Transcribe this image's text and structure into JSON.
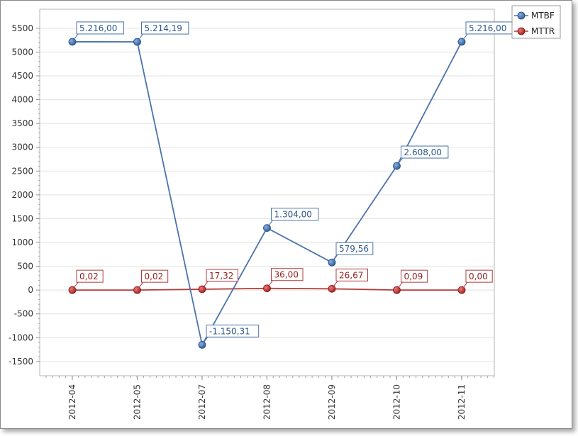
{
  "chart_data": {
    "type": "line",
    "categories": [
      "2012-04",
      "2012-05",
      "2012-07",
      "2012-08",
      "2012-09",
      "2012-10",
      "2012-11"
    ],
    "series": [
      {
        "name": "MTBF",
        "color": "#4a73aa",
        "values": [
          5216.0,
          5214.19,
          -1150.31,
          1304.0,
          579.56,
          2608.0,
          5216.0
        ],
        "labels": [
          "5.216,00",
          "5.214,19",
          "-1.150,31",
          "1.304,00",
          "579,56",
          "2.608,00",
          "5.216,00"
        ]
      },
      {
        "name": "MTTR",
        "color": "#b23b3b",
        "values": [
          0.02,
          0.02,
          17.32,
          36.0,
          26.67,
          0.09,
          0.0
        ],
        "labels": [
          "0,02",
          "0,02",
          "17,32",
          "36,00",
          "26,67",
          "0,09",
          "0,00"
        ]
      }
    ],
    "y_ticks": [
      {
        "value": 5500,
        "label": "5500"
      },
      {
        "value": 5000,
        "label": "5000"
      },
      {
        "value": 4500,
        "label": "4500"
      },
      {
        "value": 4000,
        "label": "4000"
      },
      {
        "value": 3500,
        "label": "3500"
      },
      {
        "value": 3000,
        "label": "3000"
      },
      {
        "value": 2500,
        "label": "2500"
      },
      {
        "value": 2000,
        "label": "2000"
      },
      {
        "value": 1500,
        "label": "1500"
      },
      {
        "value": 1000,
        "label": "1000"
      },
      {
        "value": 500,
        "label": "500"
      },
      {
        "value": 0,
        "label": "0"
      },
      {
        "value": -500,
        "label": "-500"
      },
      {
        "value": -1000,
        "label": "-1000"
      },
      {
        "value": -1500,
        "label": "-1500"
      }
    ],
    "ylim": [
      -1800,
      5900
    ],
    "grid": true,
    "legend_position": "top-right",
    "title": "",
    "xlabel": "",
    "ylabel": ""
  }
}
